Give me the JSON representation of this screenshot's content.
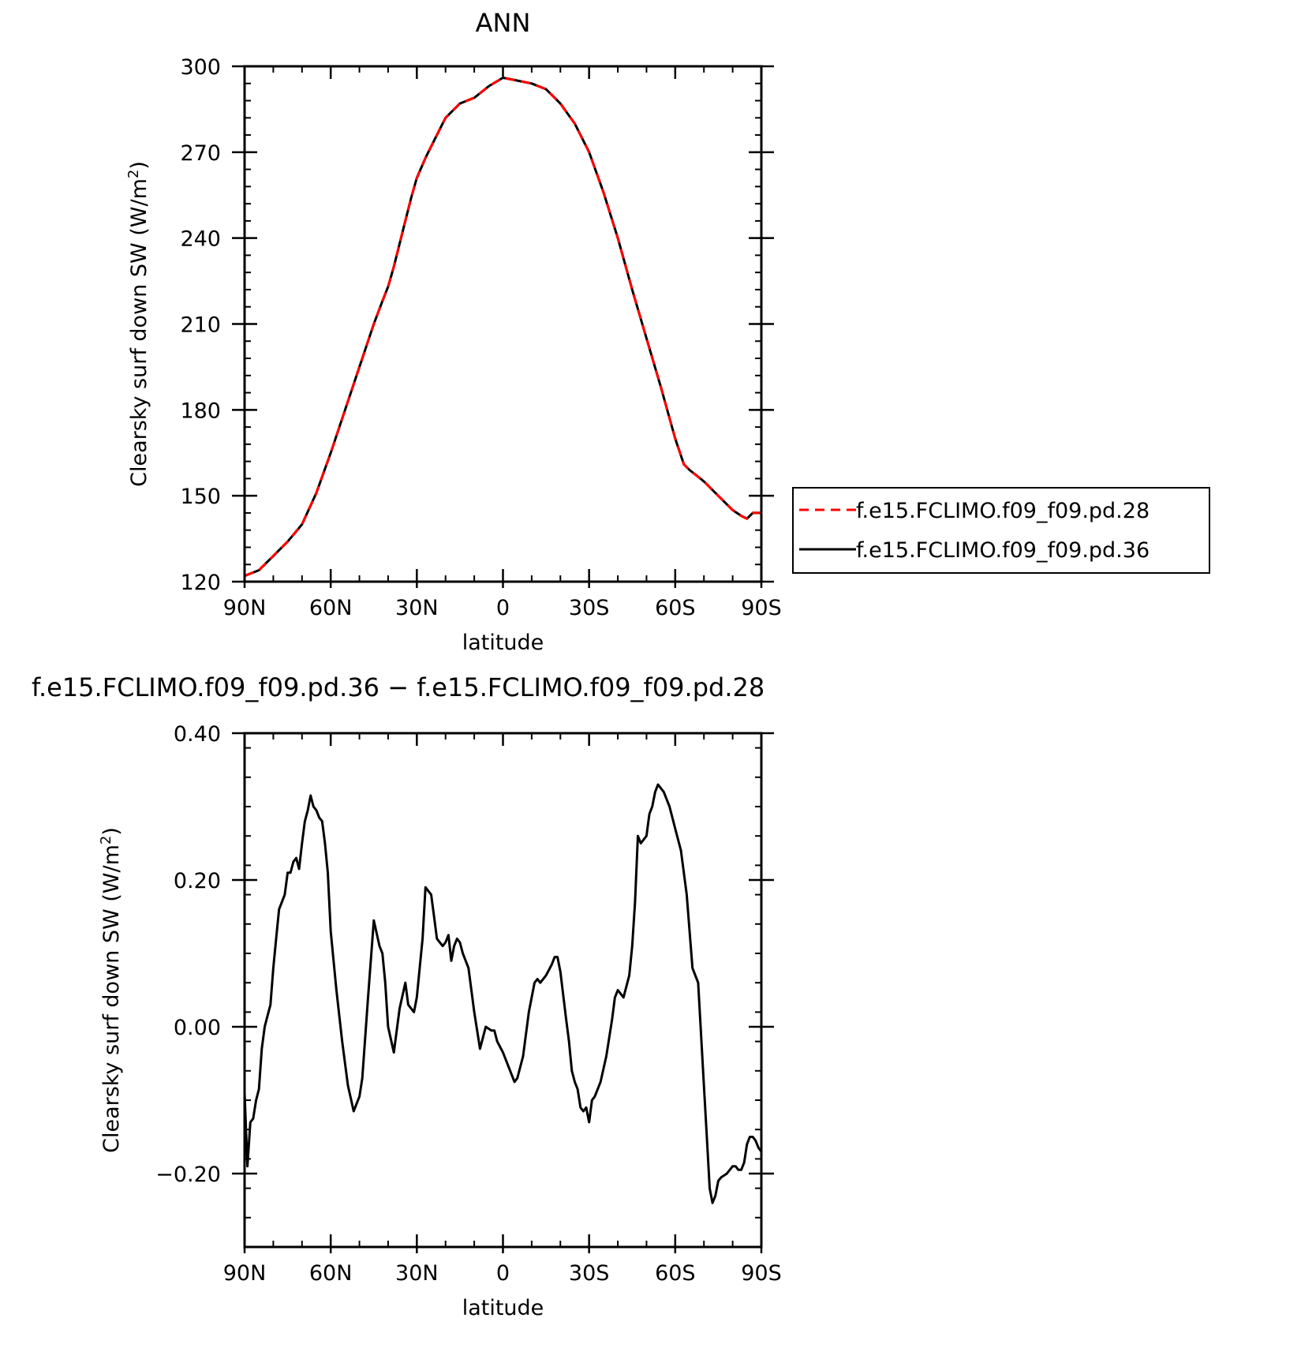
{
  "chart_data": [
    {
      "type": "line",
      "title": "ANN",
      "xlabel": "latitude",
      "ylabel": "Clearsky surf down SW (W/m²)",
      "xlim": [
        90,
        -90
      ],
      "ylim": [
        120,
        300
      ],
      "x_tick_values": [
        90,
        60,
        30,
        0,
        -30,
        -60,
        -90
      ],
      "x_tick_labels": [
        "90N",
        "60N",
        "30N",
        "0",
        "30S",
        "60S",
        "90S"
      ],
      "y_ticks": [
        "120",
        "150",
        "180",
        "210",
        "240",
        "270",
        "300"
      ],
      "y_tick_values": [
        120,
        150,
        180,
        210,
        240,
        270,
        300
      ],
      "legend": {
        "position": "right"
      },
      "series": [
        {
          "name": "f.e15.FCLIMO.f09_f09.pd.28",
          "color": "#ff0000",
          "dash": "dashed",
          "x": [
            90,
            85,
            80,
            75,
            70,
            65,
            60,
            55,
            50,
            45,
            42,
            40,
            38,
            35,
            32,
            30,
            27,
            25,
            22,
            20,
            15,
            10,
            5,
            0,
            -5,
            -10,
            -15,
            -20,
            -25,
            -30,
            -35,
            -40,
            -45,
            -50,
            -55,
            -60,
            -63,
            -65,
            -70,
            -75,
            -80,
            -83,
            -85,
            -87,
            -90
          ],
          "y": [
            122,
            124,
            129,
            134,
            140,
            151,
            165,
            180,
            195,
            210,
            218,
            223,
            230,
            242,
            254,
            261,
            268,
            272,
            278,
            282,
            287,
            289,
            293,
            296,
            295,
            294,
            292,
            287,
            280,
            270,
            256,
            240,
            222,
            205,
            188,
            170,
            161,
            159,
            155,
            150,
            145,
            143,
            142,
            144,
            144
          ]
        },
        {
          "name": "f.e15.FCLIMO.f09_f09.pd.36",
          "color": "#000000",
          "dash": "solid",
          "x": [
            90,
            85,
            80,
            75,
            70,
            65,
            60,
            55,
            50,
            45,
            42,
            40,
            38,
            35,
            32,
            30,
            27,
            25,
            22,
            20,
            15,
            10,
            5,
            0,
            -5,
            -10,
            -15,
            -20,
            -25,
            -30,
            -35,
            -40,
            -45,
            -50,
            -55,
            -60,
            -63,
            -65,
            -70,
            -75,
            -80,
            -83,
            -85,
            -87,
            -90
          ],
          "y": [
            122,
            124,
            129,
            134,
            140,
            151,
            165,
            180,
            195,
            210,
            218,
            223,
            230,
            242,
            254,
            261,
            268,
            272,
            278,
            282,
            287,
            289,
            293,
            296,
            295,
            294,
            292,
            287,
            280,
            270,
            256,
            240,
            222,
            205,
            188,
            170,
            161,
            159,
            155,
            150,
            145,
            143,
            142,
            144,
            144
          ]
        }
      ]
    },
    {
      "type": "line",
      "title": "f.e15.FCLIMO.f09_f09.pd.36 − f.e15.FCLIMO.f09_f09.pd.28",
      "xlabel": "latitude",
      "ylabel": "Clearsky surf down SW (W/m²)",
      "xlim": [
        90,
        -90
      ],
      "ylim": [
        -0.3,
        0.4
      ],
      "x_tick_values": [
        90,
        60,
        30,
        0,
        -30,
        -60,
        -90
      ],
      "x_tick_labels": [
        "90N",
        "60N",
        "30N",
        "0",
        "30S",
        "60S",
        "90S"
      ],
      "y_ticks": [
        "−0.20",
        "0.00",
        "0.20",
        "0.40"
      ],
      "y_tick_values": [
        -0.2,
        0.0,
        0.2,
        0.4
      ],
      "series": [
        {
          "name": "",
          "color": "#000000",
          "dash": "solid",
          "x": [
            90,
            89,
            88,
            87,
            86,
            85,
            84,
            83,
            82,
            81,
            80,
            79,
            78,
            77,
            76,
            75,
            74,
            73,
            72,
            71,
            70,
            69,
            68,
            67,
            66,
            65,
            64,
            63,
            62,
            61,
            60,
            58,
            56,
            54,
            52,
            50,
            49,
            47,
            45,
            43,
            42,
            41,
            40,
            38,
            36,
            34,
            33,
            31,
            30,
            28,
            27,
            25,
            24,
            23,
            21,
            20,
            19,
            18,
            17,
            16,
            15,
            14,
            12,
            10,
            8,
            6,
            4,
            3,
            2,
            0,
            -2,
            -4,
            -5,
            -7,
            -9,
            -11,
            -12,
            -13,
            -15,
            -17,
            -18,
            -19,
            -20,
            -22,
            -23,
            -24,
            -25,
            -26,
            -27,
            -28,
            -29,
            -30,
            -31,
            -32,
            -34,
            -36,
            -38,
            -39,
            -40,
            -42,
            -44,
            -45,
            -46,
            -47,
            -48,
            -50,
            -51,
            -52,
            -53,
            -54,
            -56,
            -58,
            -60,
            -62,
            -64,
            -66,
            -68,
            -70,
            -71,
            -72,
            -73,
            -74,
            -75,
            -76,
            -78,
            -80,
            -81,
            -82,
            -83,
            -84,
            -85,
            -86,
            -87,
            -88,
            -89,
            -90
          ],
          "y": [
            -0.09,
            -0.19,
            -0.13,
            -0.125,
            -0.1,
            -0.085,
            -0.03,
            0.0,
            0.015,
            0.03,
            0.08,
            0.12,
            0.16,
            0.17,
            0.18,
            0.21,
            0.21,
            0.225,
            0.23,
            0.215,
            0.25,
            0.28,
            0.295,
            0.315,
            0.3,
            0.295,
            0.285,
            0.28,
            0.25,
            0.21,
            0.13,
            0.05,
            -0.02,
            -0.08,
            -0.115,
            -0.095,
            -0.07,
            0.04,
            0.145,
            0.11,
            0.1,
            0.06,
            0.0,
            -0.035,
            0.025,
            0.06,
            0.03,
            0.02,
            0.04,
            0.12,
            0.19,
            0.18,
            0.15,
            0.12,
            0.11,
            0.115,
            0.125,
            0.09,
            0.11,
            0.12,
            0.115,
            0.1,
            0.08,
            0.02,
            -0.03,
            0.0,
            -0.005,
            -0.005,
            -0.02,
            -0.035,
            -0.055,
            -0.075,
            -0.07,
            -0.04,
            0.02,
            0.06,
            0.065,
            0.06,
            0.07,
            0.085,
            0.095,
            0.095,
            0.075,
            0.01,
            -0.02,
            -0.06,
            -0.075,
            -0.085,
            -0.11,
            -0.115,
            -0.11,
            -0.13,
            -0.1,
            -0.095,
            -0.075,
            -0.04,
            0.01,
            0.04,
            0.05,
            0.04,
            0.07,
            0.11,
            0.17,
            0.26,
            0.25,
            0.26,
            0.29,
            0.3,
            0.32,
            0.33,
            0.32,
            0.3,
            0.27,
            0.24,
            0.18,
            0.08,
            0.06,
            -0.08,
            -0.15,
            -0.22,
            -0.24,
            -0.23,
            -0.21,
            -0.205,
            -0.2,
            -0.19,
            -0.19,
            -0.195,
            -0.195,
            -0.185,
            -0.16,
            -0.15,
            -0.15,
            -0.155,
            -0.165,
            -0.17
          ]
        }
      ]
    }
  ]
}
